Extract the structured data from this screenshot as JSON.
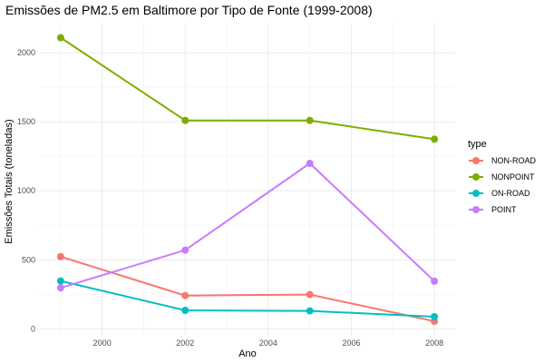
{
  "chart_data": {
    "type": "line",
    "title": "Emissões de PM2.5 em Baltimore por Tipo de Fonte (1999-2008)",
    "xlabel": "Ano",
    "ylabel": "Emissões Totais (toneladas)",
    "x": [
      1999,
      2002,
      2005,
      2008
    ],
    "xlim": [
      1998.5,
      2008.5
    ],
    "ylim": [
      -50,
      2210
    ],
    "x_ticks": [
      2000,
      2002,
      2004,
      2006,
      2008
    ],
    "y_ticks": [
      0,
      500,
      1000,
      1500,
      2000
    ],
    "grid": true,
    "legend": {
      "title": "type",
      "position": "right"
    },
    "series": [
      {
        "name": "NON-ROAD",
        "color": "#F8766D",
        "values": [
          523,
          241,
          248,
          55
        ]
      },
      {
        "name": "NONPOINT",
        "color": "#7CAE00",
        "values": [
          2108,
          1509,
          1509,
          1373
        ]
      },
      {
        "name": "ON-ROAD",
        "color": "#00BFC4",
        "values": [
          347,
          134,
          130,
          88
        ]
      },
      {
        "name": "POINT",
        "color": "#C77CFF",
        "values": [
          297,
          570,
          1198,
          345
        ]
      }
    ]
  }
}
